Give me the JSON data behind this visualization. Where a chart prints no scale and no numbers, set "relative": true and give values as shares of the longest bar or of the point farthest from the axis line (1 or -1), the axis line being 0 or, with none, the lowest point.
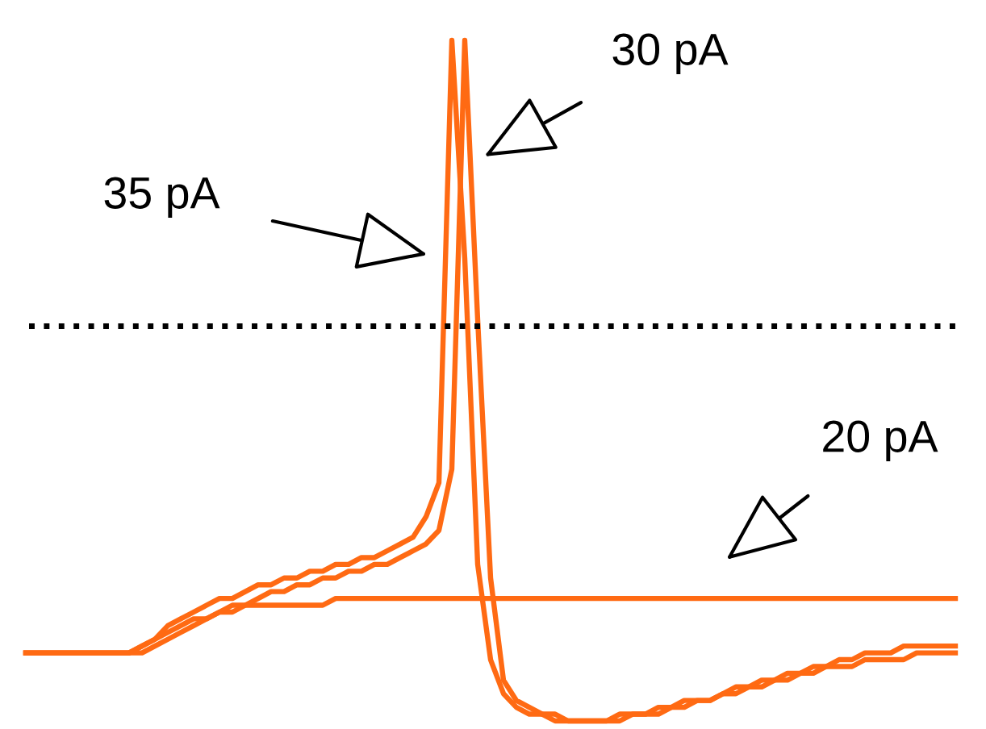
{
  "chart_data": {
    "type": "line",
    "relative": true,
    "legend": false,
    "grid": false,
    "line_style": "solid",
    "categories": [
      null,
      null,
      null,
      null,
      null,
      null,
      null,
      null,
      null,
      null,
      null,
      null,
      null,
      null,
      null,
      null,
      null,
      null,
      null,
      null,
      null,
      null,
      null,
      null,
      null,
      null,
      null,
      null,
      null,
      null,
      null,
      null,
      null,
      null,
      null,
      null,
      null,
      null,
      null,
      null,
      null,
      null,
      null,
      null,
      null,
      null,
      null,
      null,
      null,
      null,
      null,
      null,
      null,
      null,
      null,
      null,
      null,
      null,
      null,
      null,
      null,
      null,
      null,
      null,
      null,
      null,
      null,
      null,
      null,
      null,
      null,
      null,
      null
    ],
    "series": [
      {
        "color": "#ff6a13",
        "values": [
          0.1,
          0.1,
          0.1,
          0.1,
          0.1,
          0.1,
          0.1,
          0.1,
          0.1,
          0.11,
          0.12,
          0.13,
          0.14,
          0.15,
          0.15,
          0.16,
          0.16,
          0.17,
          0.17,
          0.17,
          0.17,
          0.17,
          0.17,
          0.17,
          0.18,
          0.18,
          0.18,
          0.18,
          0.18,
          0.18,
          0.18,
          0.18,
          0.18,
          0.18,
          0.18,
          0.18,
          0.18,
          0.18,
          0.18,
          0.18,
          0.18,
          0.18,
          0.18,
          0.18,
          0.18,
          0.18,
          0.18,
          0.18,
          0.18,
          0.18,
          0.18,
          0.18,
          0.18,
          0.18,
          0.18,
          0.18,
          0.18,
          0.18,
          0.18,
          0.18,
          0.18,
          0.18,
          0.18,
          0.18,
          0.18,
          0.18,
          0.18,
          0.18,
          0.18,
          0.18,
          0.18,
          0.18,
          0.18
        ]
      },
      {
        "color": "#ff6a13",
        "values": [
          0.1,
          0.1,
          0.1,
          0.1,
          0.1,
          0.1,
          0.1,
          0.1,
          0.1,
          0.11,
          0.12,
          0.14,
          0.15,
          0.16,
          0.17,
          0.18,
          0.18,
          0.19,
          0.2,
          0.2,
          0.21,
          0.21,
          0.22,
          0.22,
          0.23,
          0.23,
          0.24,
          0.24,
          0.25,
          0.26,
          0.27,
          0.3,
          0.35,
          1.0,
          0.68,
          0.23,
          0.09,
          0.04,
          0.02,
          0.01,
          0.01,
          0.0,
          0.0,
          0.0,
          0.0,
          0.0,
          0.01,
          0.01,
          0.01,
          0.02,
          0.02,
          0.03,
          0.03,
          0.03,
          0.04,
          0.04,
          0.05,
          0.05,
          0.06,
          0.06,
          0.07,
          0.07,
          0.08,
          0.08,
          0.08,
          0.09,
          0.09,
          0.09,
          0.09,
          0.1,
          0.1,
          0.1,
          0.1
        ]
      },
      {
        "color": "#ff6a13",
        "values": [
          0.1,
          0.1,
          0.1,
          0.1,
          0.1,
          0.1,
          0.1,
          0.1,
          0.1,
          0.1,
          0.11,
          0.12,
          0.13,
          0.14,
          0.15,
          0.16,
          0.17,
          0.17,
          0.18,
          0.19,
          0.19,
          0.2,
          0.2,
          0.21,
          0.21,
          0.22,
          0.22,
          0.23,
          0.23,
          0.24,
          0.25,
          0.26,
          0.28,
          0.37,
          1.0,
          0.59,
          0.21,
          0.06,
          0.03,
          0.02,
          0.01,
          0.01,
          0.0,
          0.0,
          0.0,
          0.0,
          0.0,
          0.01,
          0.01,
          0.01,
          0.02,
          0.02,
          0.03,
          0.03,
          0.04,
          0.05,
          0.05,
          0.06,
          0.06,
          0.07,
          0.07,
          0.08,
          0.08,
          0.09,
          0.09,
          0.1,
          0.1,
          0.1,
          0.11,
          0.11,
          0.11,
          0.11,
          0.11
        ]
      }
    ],
    "annotations": [
      "20 pA",
      "35 pA",
      "30 pA"
    ],
    "ref_lines": [
      {
        "axis": "y",
        "value": 0.58,
        "color": "#000000",
        "line_style": "dotted"
      }
    ]
  }
}
